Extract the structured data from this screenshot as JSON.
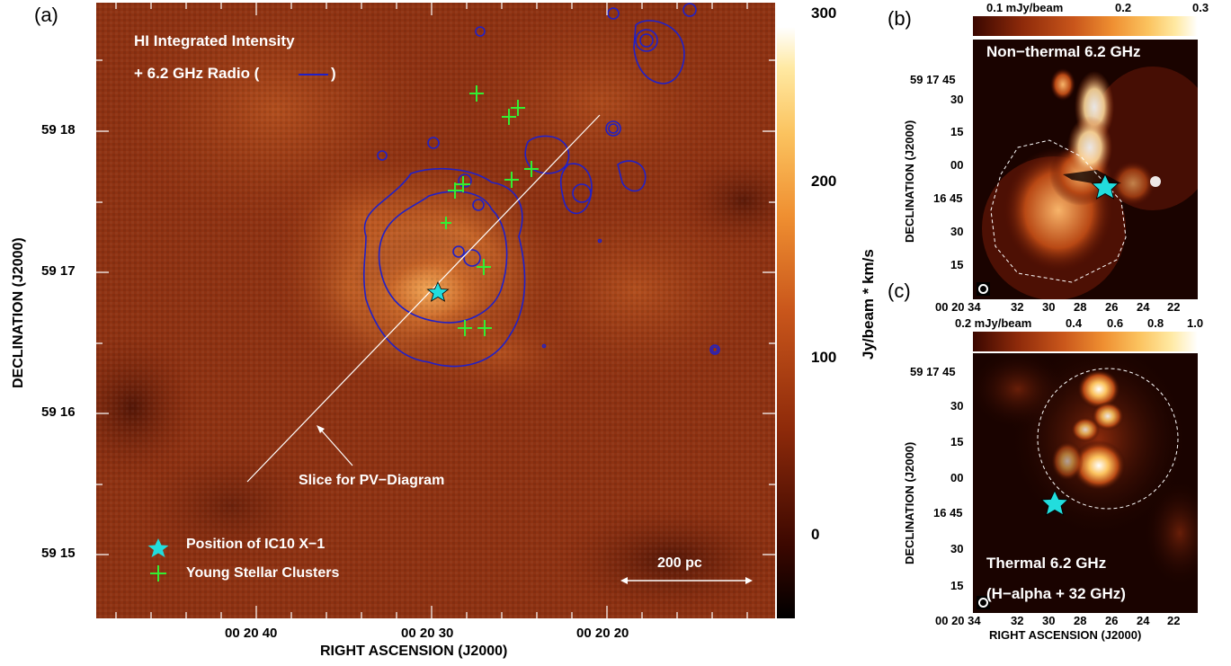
{
  "panel_a": {
    "label": "(a)",
    "title_line1": "HI Integrated Intensity",
    "title_line2_prefix": "+ 6.2 GHz Radio (",
    "title_line2_suffix": ")",
    "slice_label": "Slice for PV−Diagram",
    "scale_label": "200 pc",
    "legend_star": "Position of IC10 X−1",
    "legend_cross": "Young Stellar Clusters",
    "ylabel": "DECLINATION (J2000)",
    "xlabel": "RIGHT ASCENSION (J2000)",
    "yticks": [
      "59 18",
      "59 17",
      "59 16",
      "59 15"
    ],
    "xticks": [
      "00 20 40",
      "00 20 30",
      "00 20 20"
    ],
    "colorbar_title": "Jy/beam * km/s",
    "colorbar_ticks": [
      "300",
      "200",
      "100",
      "0"
    ]
  },
  "panel_b": {
    "label": "(b)",
    "title": "Non−thermal 6.2 GHz",
    "colorbar_ticks": [
      "0.1 mJy/beam",
      "0.2",
      "0.3"
    ],
    "ylabel": "DECLINATION (J2000)",
    "yticks": [
      "59 17 45",
      "30",
      "15",
      "00",
      "16 45",
      "30",
      "15"
    ],
    "xticks": [
      "00 20 34",
      "32",
      "30",
      "28",
      "26",
      "24",
      "22"
    ]
  },
  "panel_c": {
    "label": "(c)",
    "title_line1": "Thermal 6.2 GHz",
    "title_line2": "(H−alpha + 32 GHz)",
    "colorbar_ticks": [
      "0.2 mJy/beam",
      "0.4",
      "0.6",
      "0.8",
      "1.0"
    ],
    "ylabel": "DECLINATION (J2000)",
    "xlabel": "RIGHT ASCENSION (J2000)",
    "yticks": [
      "59 17 45",
      "30",
      "15",
      "00",
      "16 45",
      "30",
      "15"
    ],
    "xticks": [
      "00 20 34",
      "32",
      "30",
      "28",
      "26",
      "24",
      "22"
    ]
  },
  "colors": {
    "contour": "#2020c8",
    "cluster_marker": "#33ee33",
    "star_marker": "#22dddd",
    "colormap_low": "#000000",
    "colormap_mid": "#d2691e",
    "colormap_high": "#ffffff"
  }
}
